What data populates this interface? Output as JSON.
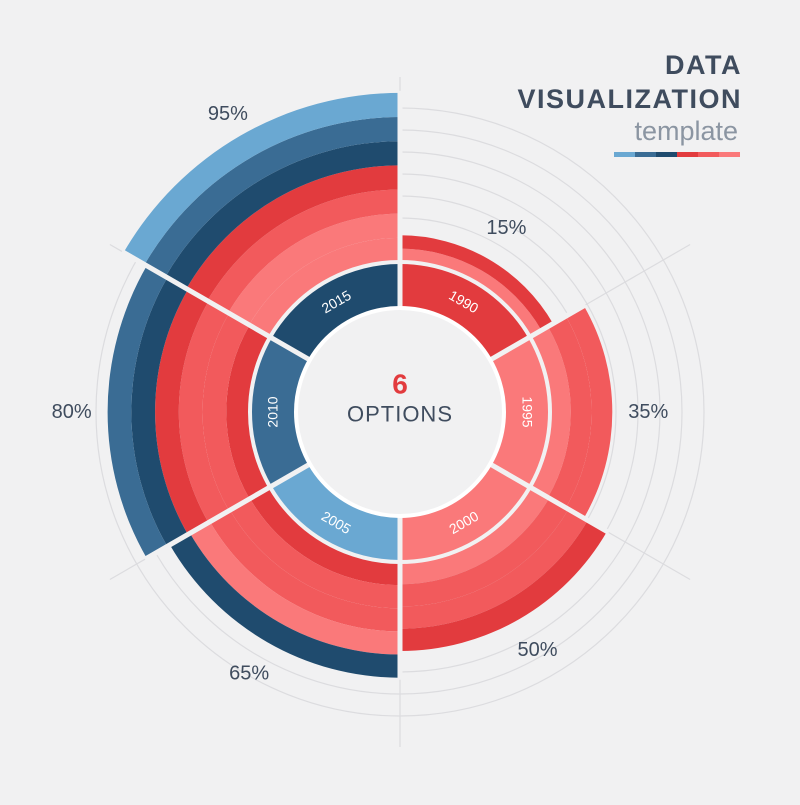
{
  "title": {
    "line1": "DATA",
    "line2": "VISUALIZATION",
    "subtitle": "template"
  },
  "center": {
    "number": "6",
    "label": "OPTIONS"
  },
  "colors": {
    "background": "#f1f1f2",
    "grid": "#dcdcdf",
    "light_blue": "#6aa8d2",
    "mid_blue": "#3a6c94",
    "dark_blue": "#1f4b6e",
    "dark_red": "#e23b3e",
    "red": "#f25a5c",
    "light_red": "#fa797a",
    "center_accent": "#e23b3e",
    "label_text": "#3f4c5e"
  },
  "title_bar_colors": [
    "#6aa8d2",
    "#3a6c94",
    "#1f4b6e",
    "#e23b3e",
    "#f25a5c",
    "#fa797a"
  ],
  "chart_data": {
    "type": "radial-bar",
    "title": "",
    "categories": [
      "1990",
      "1995",
      "2000",
      "2005",
      "2010",
      "2015"
    ],
    "values": [
      15,
      35,
      50,
      65,
      80,
      95
    ],
    "value_labels": [
      "15%",
      "35%",
      "50%",
      "65%",
      "80%",
      "95%"
    ],
    "category_colors": [
      "#e23b3e",
      "#fa797a",
      "#fa797a",
      "#6aa8d2",
      "#3a6c94",
      "#1f4b6e"
    ],
    "bar_bands": [
      [
        "#fa797a",
        "#e23b3e"
      ],
      [
        "#fa797a",
        "#f25a5c",
        "#f25a5c"
      ],
      [
        "#fa797a",
        "#f25a5c",
        "#f25a5c",
        "#e23b3e"
      ],
      [
        "#e23b3e",
        "#f25a5c",
        "#f25a5c",
        "#fa797a",
        "#1f4b6e"
      ],
      [
        "#e23b3e",
        "#f25a5c",
        "#f25a5c",
        "#e23b3e",
        "#1f4b6e",
        "#3a6c94"
      ],
      [
        "#fa797a",
        "#fa797a",
        "#f25a5c",
        "#e23b3e",
        "#1f4b6e",
        "#3a6c94",
        "#6aa8d2"
      ]
    ],
    "rlim": [
      0,
      100
    ],
    "grid": true
  }
}
